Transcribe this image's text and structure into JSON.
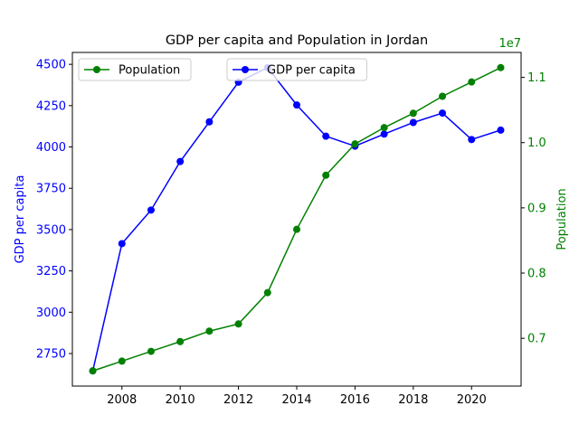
{
  "chart_data": {
    "type": "line",
    "title": "GDP per capita and Population in Jordan",
    "x": [
      2007,
      2008,
      2009,
      2010,
      2011,
      2012,
      2013,
      2014,
      2015,
      2016,
      2017,
      2018,
      2019,
      2020,
      2021
    ],
    "x_ticks": [
      2008,
      2010,
      2012,
      2014,
      2016,
      2018,
      2020
    ],
    "xlim": [
      2006.3,
      2021.7
    ],
    "xlabel": "",
    "series": [
      {
        "name": "GDP per capita",
        "axis": "left",
        "color": "#0000ff",
        "values": [
          2645,
          3415,
          3618,
          3912,
          4152,
          4392,
          4480,
          4254,
          4065,
          4005,
          4078,
          4148,
          4205,
          4045,
          4102
        ]
      },
      {
        "name": "Population",
        "axis": "right",
        "color": "#008000",
        "values": [
          6500000,
          6650000,
          6800000,
          6950000,
          7110000,
          7220000,
          7700000,
          8670000,
          9500000,
          9980000,
          10230000,
          10450000,
          10710000,
          10930000,
          11150000
        ]
      }
    ],
    "y_left": {
      "label": "GDP per capita",
      "color": "#0000ff",
      "ticks": [
        2750,
        3000,
        3250,
        3500,
        3750,
        4000,
        4250,
        4500
      ],
      "ylim": [
        2553,
        4572
      ]
    },
    "y_right": {
      "label": "Population",
      "color": "#008000",
      "ticks": [
        7000000,
        8000000,
        9000000,
        10000000,
        11000000
      ],
      "tick_labels": [
        "0.7",
        "0.8",
        "0.9",
        "1.0",
        "1.1"
      ],
      "offset_text": "1e7",
      "ylim": [
        6267500,
        11382500
      ]
    },
    "legends": [
      {
        "entries": [
          "Population"
        ],
        "placement": "upper left"
      },
      {
        "entries": [
          "GDP per capita"
        ],
        "placement": "upper center"
      }
    ],
    "grid": false
  }
}
